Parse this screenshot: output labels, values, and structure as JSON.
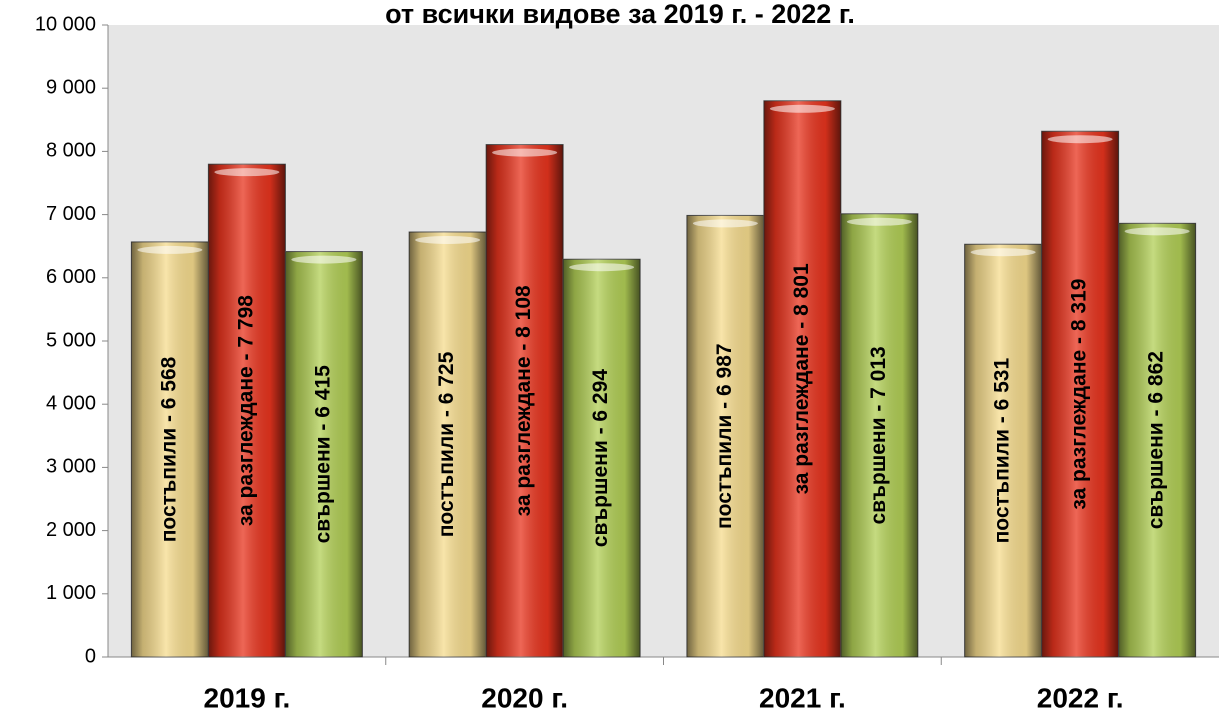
{
  "chart_data": {
    "type": "bar",
    "title": "от всички видове за 2019 г. - 2022 г.",
    "categories": [
      "2019 г.",
      "2020 г.",
      "2021 г.",
      "2022 г."
    ],
    "series": [
      {
        "color": "#f6dc8e",
        "values": [
          6568,
          6725,
          6987,
          6531
        ],
        "value_labels": [
          "постъпили -  6 568",
          "постъпили -  6 725",
          "постъпили -  6 987",
          "постъпили -  6 531"
        ]
      },
      {
        "color": "#e8341e",
        "values": [
          7798,
          8108,
          8801,
          8319
        ],
        "value_labels": [
          "за  разглеждане -  7 798",
          "за  разглеждане -  8 108",
          "за  разглеждане -  8 801",
          "за  разглеждане -  8 319"
        ]
      },
      {
        "color": "#b2cf56",
        "values": [
          6415,
          6294,
          7013,
          6862
        ],
        "value_labels": [
          "свършени -  6 415",
          "свършени -  6 294",
          "свършени -  7 013",
          "свършени -  6 862"
        ]
      }
    ],
    "ylim": [
      0,
      10000
    ],
    "yticks": [
      0,
      {
        "value": 1000,
        "label": "1 000"
      },
      {
        "value": 2000,
        "label": "2 000"
      },
      {
        "value": 3000,
        "label": "3 000"
      },
      {
        "value": 4000,
        "label": "4 000"
      },
      {
        "value": 5000,
        "label": "5 000"
      },
      {
        "value": 6000,
        "label": "6 000"
      },
      {
        "value": 7000,
        "label": "7 000"
      },
      {
        "value": 8000,
        "label": "8 000"
      },
      {
        "value": 9000,
        "label": "9 000"
      },
      {
        "value": 10000,
        "label": "10 000"
      }
    ],
    "grid": false
  }
}
